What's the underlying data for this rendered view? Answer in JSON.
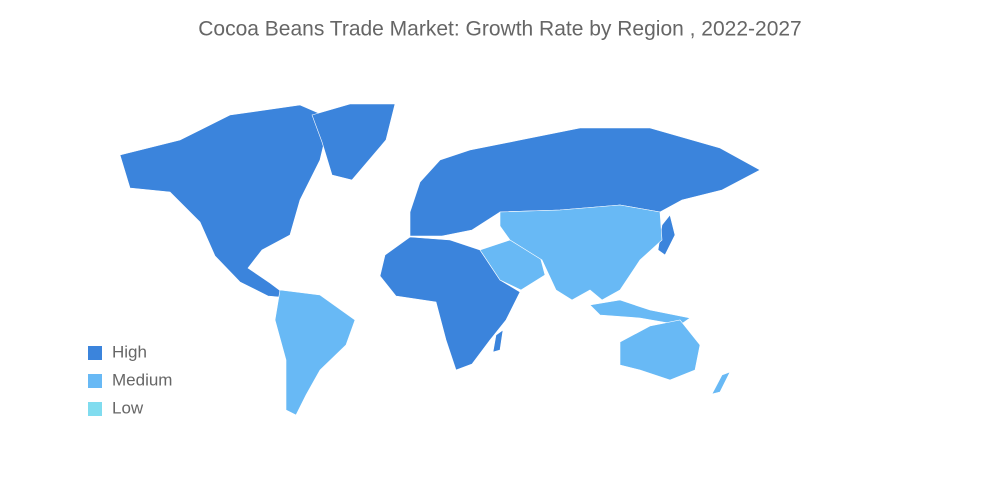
{
  "title": "Cocoa Beans Trade Market: Growth Rate by Region , 2022-2027",
  "legend": [
    {
      "label": "High",
      "color": "#3b84dc"
    },
    {
      "label": "Medium",
      "color": "#68b9f5"
    },
    {
      "label": "Low",
      "color": "#80dcef"
    }
  ]
}
